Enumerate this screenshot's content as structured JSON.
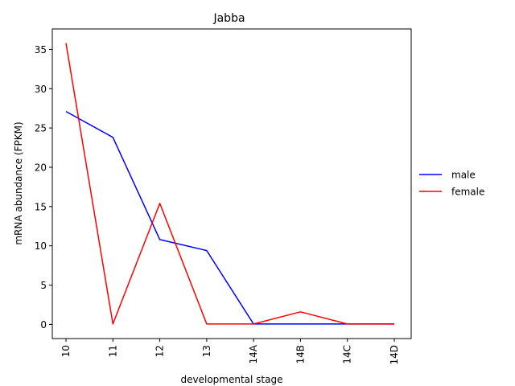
{
  "chart_data": {
    "type": "line",
    "title": "Jabba",
    "xlabel": "developmental stage",
    "ylabel": "mRNA abundance (FPKM)",
    "categories": [
      "10",
      "11",
      "12",
      "13",
      "14A",
      "14B",
      "14C",
      "14D"
    ],
    "ylim": [
      -1.8,
      37.6
    ],
    "yticks": [
      0,
      5,
      10,
      15,
      20,
      25,
      30,
      35
    ],
    "grid": false,
    "legend_position": "right",
    "series": [
      {
        "name": "male",
        "color": "#0000ff",
        "values": [
          27.1,
          23.8,
          10.8,
          9.4,
          0.05,
          0.05,
          0.05,
          0.05
        ]
      },
      {
        "name": "female",
        "color": "#ff0000",
        "values": [
          35.8,
          0.05,
          15.4,
          0.05,
          0.05,
          1.6,
          0.05,
          0.05
        ]
      }
    ]
  }
}
